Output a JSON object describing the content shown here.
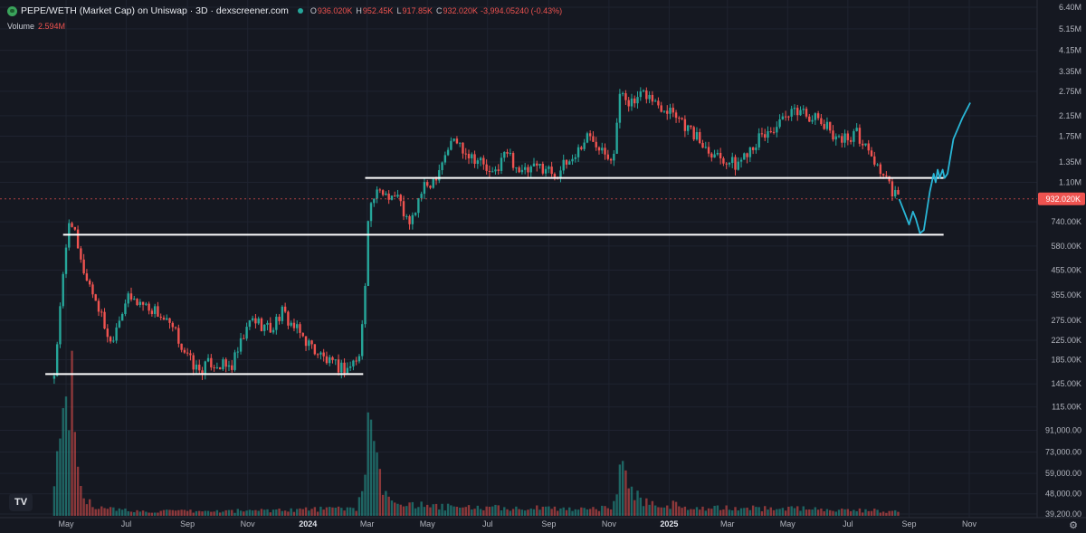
{
  "header": {
    "title": "PEPE/WETH (Market Cap) on Uniswap · 3D · dexscreener.com",
    "open_key": "O",
    "open": "936.020K",
    "high_key": "H",
    "high": "952.45K",
    "low_key": "L",
    "low": "917.85K",
    "close_key": "C",
    "close": "932.020K",
    "change": "-3,994.05240 (-0.43%)",
    "icons": {
      "coin": "pepe-coin-icon",
      "status": "market-status-dot-icon"
    }
  },
  "volume": {
    "label": "Volume",
    "value": "2.594M"
  },
  "logo": {
    "text": "TV"
  },
  "settings_icon": "gear-icon",
  "colors": {
    "background": "#151821",
    "up": "#26a69a",
    "down": "#ef5350",
    "level_line": "#ffffff",
    "projection": "#29b6d6",
    "grid": "#1f2330"
  },
  "chart_data": {
    "type": "candlestick",
    "scale": "log",
    "interval": "3D",
    "y_tick_labels": [
      "6.40M",
      "5.15M",
      "4.15M",
      "3.35M",
      "2.75M",
      "2.15M",
      "1.75M",
      "1.35M",
      "1.10M",
      "740.00K",
      "580.00K",
      "455.00K",
      "355.00K",
      "275.00K",
      "225.00K",
      "185.00K",
      "145.00K",
      "115.00K",
      "91,000.00",
      "73,000.00",
      "59,000.00",
      "48,000.00",
      "39,200.00"
    ],
    "y_tick_values": [
      6400000,
      5150000,
      4150000,
      3350000,
      2750000,
      2150000,
      1750000,
      1350000,
      1100000,
      740000,
      580000,
      455000,
      355000,
      275000,
      225000,
      185000,
      145000,
      115000,
      91000,
      73000,
      59000,
      48000,
      39200
    ],
    "x_tick_labels": [
      "May",
      "Jul",
      "Sep",
      "Nov",
      "2024",
      "Mar",
      "May",
      "Jul",
      "Sep",
      "Nov",
      "2025",
      "Mar",
      "May",
      "Jul",
      "Sep",
      "Nov"
    ],
    "x_tick_dates": [
      "2023-05-01",
      "2023-07-01",
      "2023-09-01",
      "2023-11-01",
      "2024-01-01",
      "2024-03-01",
      "2024-05-01",
      "2024-07-01",
      "2024-09-01",
      "2024-11-01",
      "2025-01-01",
      "2025-03-01",
      "2025-05-01",
      "2025-07-01",
      "2025-09-01",
      "2025-11-01"
    ],
    "bold_x_ticks": [
      "2024",
      "2025"
    ],
    "last_price": {
      "label": "932.020K",
      "value": 932020
    },
    "close_path": [
      [
        "2023-04-19",
        160000
      ],
      [
        "2023-04-28",
        420000
      ],
      [
        "2023-05-05",
        820000
      ],
      [
        "2023-05-15",
        500000
      ],
      [
        "2023-06-01",
        330000
      ],
      [
        "2023-06-15",
        220000
      ],
      [
        "2023-06-22",
        270000
      ],
      [
        "2023-07-01",
        340000
      ],
      [
        "2023-07-15",
        330000
      ],
      [
        "2023-08-01",
        300000
      ],
      [
        "2023-08-20",
        240000
      ],
      [
        "2023-09-01",
        190000
      ],
      [
        "2023-09-12",
        165000
      ],
      [
        "2023-09-25",
        180000
      ],
      [
        "2023-10-15",
        170000
      ],
      [
        "2023-10-24",
        210000
      ],
      [
        "2023-11-05",
        280000
      ],
      [
        "2023-11-25",
        250000
      ],
      [
        "2023-12-05",
        300000
      ],
      [
        "2023-12-20",
        250000
      ],
      [
        "2024-01-10",
        200000
      ],
      [
        "2024-01-25",
        175000
      ],
      [
        "2024-02-10",
        170000
      ],
      [
        "2024-02-22",
        190000
      ],
      [
        "2024-02-27",
        320000
      ],
      [
        "2024-03-02",
        800000
      ],
      [
        "2024-03-08",
        950000
      ],
      [
        "2024-03-18",
        1000000
      ],
      [
        "2024-04-01",
        950000
      ],
      [
        "2024-04-13",
        700000
      ],
      [
        "2024-04-25",
        1000000
      ],
      [
        "2024-05-08",
        1150000
      ],
      [
        "2024-05-20",
        1500000
      ],
      [
        "2024-05-28",
        1700000
      ],
      [
        "2024-06-10",
        1500000
      ],
      [
        "2024-06-25",
        1350000
      ],
      [
        "2024-07-05",
        1150000
      ],
      [
        "2024-07-20",
        1500000
      ],
      [
        "2024-08-05",
        1200000
      ],
      [
        "2024-08-25",
        1300000
      ],
      [
        "2024-09-08",
        1200000
      ],
      [
        "2024-09-25",
        1400000
      ],
      [
        "2024-10-10",
        1750000
      ],
      [
        "2024-10-25",
        1600000
      ],
      [
        "2024-11-05",
        1400000
      ],
      [
        "2024-11-13",
        2800000
      ],
      [
        "2024-11-25",
        2400000
      ],
      [
        "2024-12-08",
        2700000
      ],
      [
        "2024-12-20",
        2400000
      ],
      [
        "2025-01-05",
        2300000
      ],
      [
        "2025-01-20",
        1900000
      ],
      [
        "2025-02-05",
        1600000
      ],
      [
        "2025-02-20",
        1450000
      ],
      [
        "2025-03-10",
        1300000
      ],
      [
        "2025-03-25",
        1600000
      ],
      [
        "2025-04-10",
        1800000
      ],
      [
        "2025-04-25",
        2000000
      ],
      [
        "2025-05-12",
        2300000
      ],
      [
        "2025-05-28",
        2100000
      ],
      [
        "2025-06-10",
        1900000
      ],
      [
        "2025-06-25",
        1700000
      ],
      [
        "2025-07-10",
        1800000
      ],
      [
        "2025-07-22",
        1500000
      ],
      [
        "2025-08-05",
        1200000
      ],
      [
        "2025-08-15",
        1000000
      ],
      [
        "2025-08-22",
        932020
      ]
    ],
    "volume_path": [
      [
        "2023-04-19",
        0.18
      ],
      [
        "2023-04-25",
        0.6
      ],
      [
        "2023-05-01",
        0.75
      ],
      [
        "2023-05-05",
        1.0
      ],
      [
        "2023-05-12",
        0.3
      ],
      [
        "2023-05-20",
        0.12
      ],
      [
        "2023-06-05",
        0.05
      ],
      [
        "2023-07-15",
        0.03
      ],
      [
        "2023-10-01",
        0.03
      ],
      [
        "2023-12-01",
        0.04
      ],
      [
        "2024-02-20",
        0.05
      ],
      [
        "2024-02-28",
        0.35
      ],
      [
        "2024-03-03",
        0.55
      ],
      [
        "2024-03-07",
        0.45
      ],
      [
        "2024-03-12",
        0.3
      ],
      [
        "2024-03-20",
        0.12
      ],
      [
        "2024-05-01",
        0.06
      ],
      [
        "2024-08-01",
        0.05
      ],
      [
        "2024-11-05",
        0.05
      ],
      [
        "2024-11-12",
        0.35
      ],
      [
        "2024-11-20",
        0.2
      ],
      [
        "2024-12-05",
        0.1
      ],
      [
        "2025-02-01",
        0.05
      ],
      [
        "2025-05-01",
        0.05
      ],
      [
        "2025-08-22",
        0.03
      ]
    ],
    "levels": [
      {
        "start": "2023-04-10",
        "end": "2024-02-26",
        "value": 160000
      },
      {
        "start": "2023-04-28",
        "end": "2025-10-06",
        "value": 650000
      },
      {
        "start": "2024-02-28",
        "end": "2025-10-06",
        "value": 1150000
      }
    ],
    "projection": [
      [
        "2025-08-22",
        930000
      ],
      [
        "2025-08-28",
        800000
      ],
      [
        "2025-09-01",
        720000
      ],
      [
        "2025-09-05",
        820000
      ],
      [
        "2025-09-08",
        760000
      ],
      [
        "2025-09-12",
        660000
      ],
      [
        "2025-09-16",
        680000
      ],
      [
        "2025-09-22",
        1000000
      ],
      [
        "2025-09-26",
        1200000
      ],
      [
        "2025-09-28",
        1100000
      ],
      [
        "2025-09-30",
        1250000
      ],
      [
        "2025-10-02",
        1150000
      ],
      [
        "2025-10-05",
        1250000
      ],
      [
        "2025-10-07",
        1150000
      ],
      [
        "2025-10-10",
        1200000
      ],
      [
        "2025-10-16",
        1700000
      ],
      [
        "2025-10-25",
        2100000
      ],
      [
        "2025-11-02",
        2450000
      ]
    ]
  }
}
